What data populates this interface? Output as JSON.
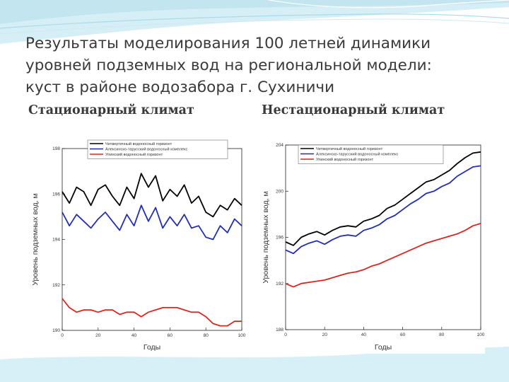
{
  "slide": {
    "title_lines": [
      "Результаты моделирования 100 летней динамики",
      "уровней подземных вод на региональной модели:",
      "куст в районе водозабора г. Сухиничи"
    ],
    "left_heading": "Стационарный климат",
    "right_heading": "Нестационарный климат",
    "colors": {
      "background_wave": "#bfe6f1",
      "text": "#3a3a3a"
    }
  },
  "chart_data": [
    {
      "type": "line",
      "title": "",
      "xlabel": "Годы",
      "ylabel": "Уровень подземных вод, м",
      "xlim": [
        0,
        100
      ],
      "ylim": [
        190,
        198
      ],
      "xticks": [
        "0",
        "20",
        "40",
        "60",
        "80",
        "100"
      ],
      "yticks": [
        "190",
        "192",
        "194",
        "196",
        "198"
      ],
      "grid": false,
      "legend_position": "top-center",
      "x": [
        0,
        4,
        8,
        12,
        16,
        20,
        24,
        28,
        32,
        36,
        40,
        44,
        48,
        52,
        56,
        60,
        64,
        68,
        72,
        76,
        80,
        84,
        88,
        92,
        96,
        100
      ],
      "series": [
        {
          "name": "Четвертичный водоносный горизонт",
          "color": "#000000",
          "values": [
            196.1,
            195.6,
            196.3,
            196.1,
            195.5,
            196.2,
            196.4,
            195.9,
            195.5,
            196.3,
            195.8,
            196.9,
            196.3,
            196.8,
            195.7,
            196.2,
            195.9,
            196.4,
            195.6,
            195.9,
            195.2,
            195.0,
            195.5,
            195.3,
            195.8,
            195.5
          ]
        },
        {
          "name": "Алексинско-тарусский водоносный комплекс",
          "color": "#1f2dbb",
          "values": [
            195.2,
            194.6,
            195.1,
            194.8,
            194.5,
            194.9,
            195.2,
            194.8,
            194.4,
            195.1,
            194.6,
            195.5,
            194.8,
            195.4,
            194.5,
            195.0,
            194.6,
            195.1,
            194.5,
            194.6,
            194.1,
            194.0,
            194.6,
            194.3,
            194.9,
            194.6
          ]
        },
        {
          "name": "Упинский водоносный горизонт",
          "color": "#e0241c",
          "values": [
            191.4,
            191.0,
            190.8,
            190.9,
            190.9,
            190.8,
            190.9,
            190.9,
            190.7,
            190.8,
            190.8,
            190.6,
            190.8,
            190.9,
            191.0,
            191.0,
            191.0,
            190.9,
            190.8,
            190.8,
            190.6,
            190.3,
            190.2,
            190.2,
            190.4,
            190.4
          ]
        }
      ]
    },
    {
      "type": "line",
      "title": "",
      "xlabel": "Годы",
      "ylabel": "Уровень подземных вод, м",
      "xlim": [
        0,
        100
      ],
      "ylim": [
        188,
        204
      ],
      "xticks": [
        "0",
        "20",
        "40",
        "60",
        "80",
        "100"
      ],
      "yticks": [
        "188",
        "192",
        "196",
        "200",
        "204"
      ],
      "grid": false,
      "legend_position": "top-center",
      "x": [
        0,
        4,
        8,
        12,
        16,
        20,
        24,
        28,
        32,
        36,
        40,
        44,
        48,
        52,
        56,
        60,
        64,
        68,
        72,
        76,
        80,
        84,
        88,
        92,
        96,
        100
      ],
      "series": [
        {
          "name": "Четвертичный водоносный горизонт",
          "color": "#000000",
          "values": [
            195.6,
            195.3,
            196.0,
            196.3,
            196.5,
            196.2,
            196.6,
            196.9,
            197.0,
            196.9,
            197.4,
            197.6,
            197.9,
            198.5,
            198.8,
            199.3,
            199.8,
            200.3,
            200.8,
            201.0,
            201.4,
            201.8,
            202.4,
            202.9,
            203.3,
            203.4
          ]
        },
        {
          "name": "Алексинско-тарусский водоносный комплекс",
          "color": "#1f2dbb",
          "values": [
            194.9,
            194.6,
            195.2,
            195.5,
            195.7,
            195.4,
            195.8,
            196.1,
            196.2,
            196.1,
            196.6,
            196.8,
            197.1,
            197.6,
            197.9,
            198.4,
            198.9,
            199.3,
            199.8,
            200.0,
            200.4,
            200.7,
            201.3,
            201.7,
            202.1,
            202.2
          ]
        },
        {
          "name": "Упинский водоносный горизонт",
          "color": "#e0241c",
          "values": [
            192.0,
            191.7,
            192.0,
            192.1,
            192.2,
            192.3,
            192.5,
            192.7,
            192.9,
            193.0,
            193.2,
            193.5,
            193.7,
            194.0,
            194.3,
            194.6,
            194.9,
            195.2,
            195.5,
            195.7,
            195.9,
            196.1,
            196.3,
            196.6,
            197.0,
            197.2
          ]
        }
      ]
    }
  ]
}
